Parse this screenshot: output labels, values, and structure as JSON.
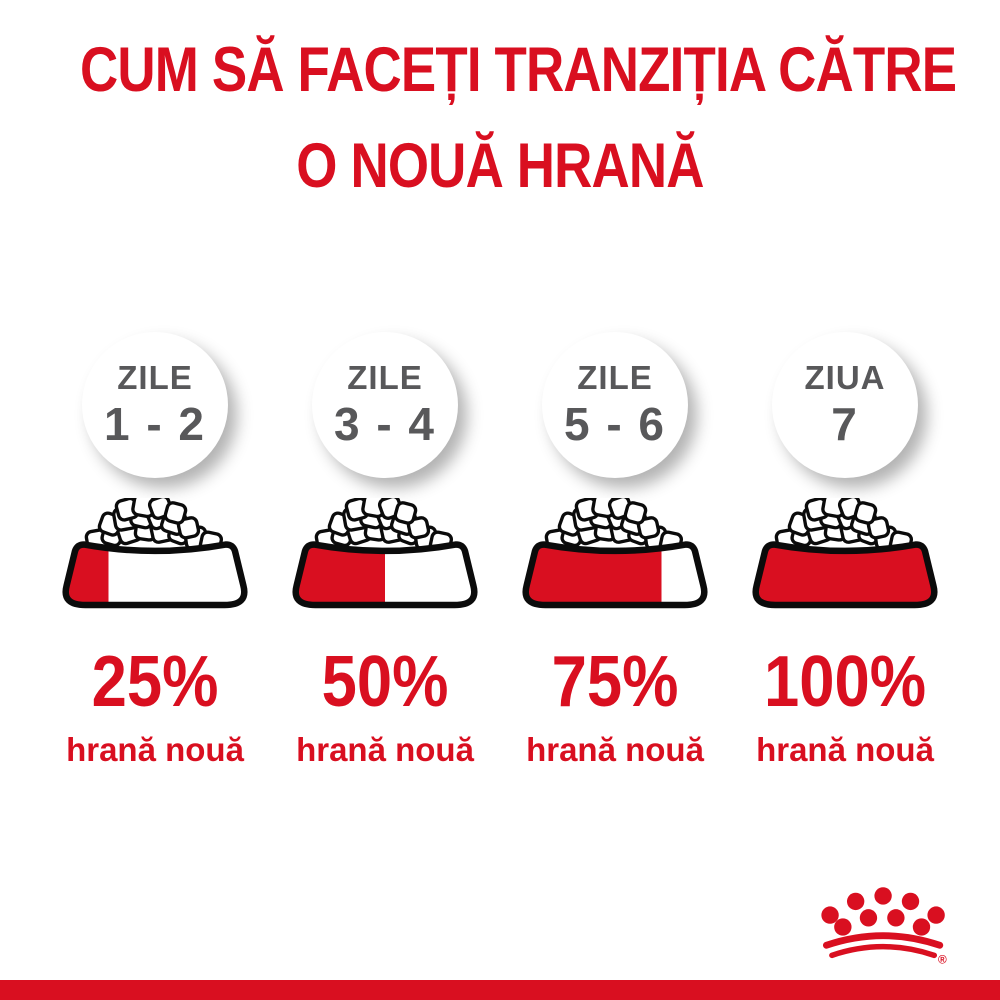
{
  "title": {
    "line1": "CUM SĂ FACEȚI TRANZIȚIA CĂTRE",
    "line2": "O NOUĂ HRANĂ"
  },
  "columns": [
    {
      "day_label": "ZILE",
      "day_range": "1 - 2",
      "percent_label": "25%",
      "percent_value": 25,
      "food_label": "hrană nouă"
    },
    {
      "day_label": "ZILE",
      "day_range": "3 - 4",
      "percent_label": "50%",
      "percent_value": 50,
      "food_label": "hrană nouă"
    },
    {
      "day_label": "ZILE",
      "day_range": "5 - 6",
      "percent_label": "75%",
      "percent_value": 75,
      "food_label": "hrană nouă"
    },
    {
      "day_label": "ZIUA",
      "day_range": "7",
      "percent_label": "100%",
      "percent_value": 100,
      "food_label": "hrană nouă"
    }
  ],
  "logo": {
    "registered_mark": "®"
  },
  "colors": {
    "brand_red": "#d90f20",
    "label_gray": "#58585a",
    "outline_black": "#0b0b0b",
    "bowl_fill": "#ffffff"
  }
}
